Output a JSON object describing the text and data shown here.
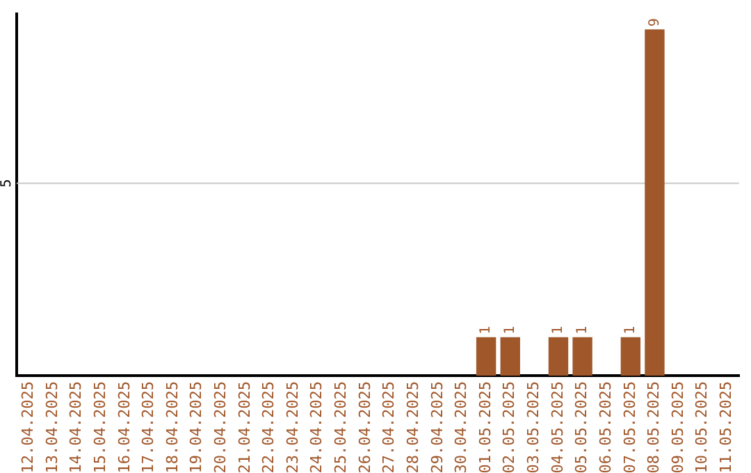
{
  "chart_data": {
    "type": "bar",
    "categories": [
      "12.04.2025",
      "13.04.2025",
      "14.04.2025",
      "15.04.2025",
      "16.04.2025",
      "17.04.2025",
      "18.04.2025",
      "19.04.2025",
      "20.04.2025",
      "21.04.2025",
      "22.04.2025",
      "23.04.2025",
      "24.04.2025",
      "25.04.2025",
      "26.04.2025",
      "27.04.2025",
      "28.04.2025",
      "29.04.2025",
      "30.04.2025",
      "01.05.2025",
      "02.05.2025",
      "03.05.2025",
      "04.05.2025",
      "05.05.2025",
      "06.05.2025",
      "07.05.2025",
      "08.05.2025",
      "09.05.2025",
      "10.05.2025",
      "11.05.2025"
    ],
    "values": [
      null,
      null,
      null,
      null,
      null,
      null,
      null,
      null,
      null,
      null,
      null,
      null,
      null,
      null,
      null,
      null,
      null,
      null,
      null,
      1,
      1,
      null,
      1,
      1,
      null,
      1,
      9,
      null,
      null,
      null
    ],
    "data_labels": true,
    "color": "#a0572a",
    "ylim": [
      0,
      9.4
    ],
    "ref_lines": [
      {
        "axis": "y",
        "value": 5,
        "label": "5",
        "color": "#c8c8c8"
      }
    ],
    "legend": false
  }
}
